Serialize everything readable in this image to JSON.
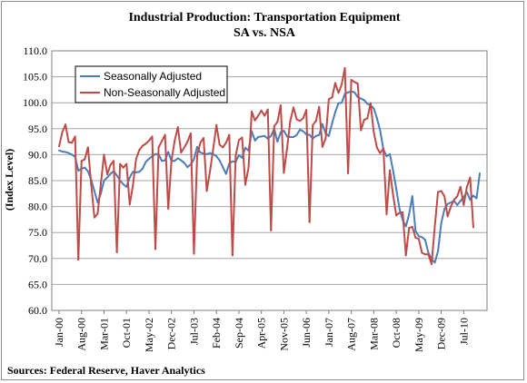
{
  "chart_data": {
    "type": "line",
    "title": "Industrial Production:  Transportation  Equipment",
    "subtitle": "SA vs. NSA",
    "ylabel": "(Index Level)",
    "xlabel": "",
    "ylim": [
      60.0,
      110.0
    ],
    "yticks": [
      "60.0",
      "65.0",
      "70.0",
      "75.0",
      "80.0",
      "85.0",
      "90.0",
      "95.0",
      "100.0",
      "105.0",
      "110.0"
    ],
    "x_tick_labels": [
      "Jan-00",
      "Aug-00",
      "Mar-01",
      "Oct-01",
      "May-02",
      "Dec-02",
      "Jul-03",
      "Feb-04",
      "Sep-04",
      "Apr-05",
      "Nov-05",
      "Jun-06",
      "Jan-07",
      "Aug-07",
      "Mar-08",
      "Oct-08",
      "May-09",
      "Dec-09",
      "Jul-10"
    ],
    "grid": "horizontal",
    "legend_position": "top-left",
    "source": "Sources:  Federal Reserve, Haver Analytics",
    "x_start": "Jan-00",
    "frequency": "monthly",
    "series": [
      {
        "name": "Seasonally Adjusted",
        "color": "#4a7ebb",
        "values": [
          90.8,
          90.6,
          90.5,
          90.3,
          90.0,
          89.6,
          86.9,
          87.3,
          87.5,
          86.8,
          85.2,
          83.0,
          80.8,
          82.5,
          85.0,
          85.6,
          86.3,
          86.8,
          86.0,
          85.0,
          84.3,
          83.8,
          85.6,
          86.7,
          86.6,
          86.7,
          87.3,
          88.6,
          89.2,
          89.7,
          90.1,
          90.1,
          88.8,
          88.9,
          90.5,
          88.8,
          88.8,
          89.3,
          88.9,
          88.4,
          87.6,
          88.1,
          89.1,
          91.5,
          90.4,
          90.2,
          90.1,
          90.3,
          90.1,
          89.7,
          88.9,
          87.6,
          86.3,
          88.3,
          88.7,
          88.6,
          89.9,
          89.4,
          91.3,
          90.8,
          94.5,
          92.7,
          93.4,
          93.5,
          93.6,
          93.1,
          93.6,
          95.0,
          92.5,
          94.3,
          94.6,
          93.5,
          93.4,
          93.4,
          93.8,
          94.8,
          94.5,
          93.9,
          93.8,
          93.1,
          93.6,
          93.8,
          95.9,
          94.1,
          93.6,
          96.0,
          98.2,
          99.9,
          100.0,
          101.7,
          102.0,
          102.2,
          102.0,
          101.1,
          100.8,
          100.5,
          99.8,
          99.5,
          98.9,
          97.0,
          94.6,
          91.0,
          89.7,
          90.1,
          87.0,
          83.4,
          79.6,
          77.4,
          76.2,
          78.5,
          82.0,
          75.3,
          74.3,
          74.1,
          73.6,
          71.1,
          69.9,
          69.2,
          71.4,
          76.8,
          79.5,
          80.5,
          80.8,
          81.1,
          80.3,
          81.1,
          81.8,
          82.8,
          81.3,
          82.1,
          81.6,
          86.4
        ]
      },
      {
        "name": "Non-Seasonally Adjusted",
        "color": "#be4b48",
        "values": [
          91.6,
          94.3,
          95.8,
          92.4,
          92.3,
          93.5,
          69.8,
          88.8,
          89.1,
          91.4,
          84.3,
          77.9,
          78.6,
          84.3,
          90.0,
          86.2,
          88.0,
          88.8,
          71.2,
          88.2,
          87.5,
          88.2,
          80.4,
          84.1,
          89.2,
          90.9,
          91.7,
          92.1,
          92.7,
          93.5,
          71.8,
          91.4,
          92.6,
          93.8,
          79.6,
          88.8,
          92.7,
          95.3,
          90.4,
          91.4,
          92.5,
          94.1,
          70.9,
          89.9,
          92.3,
          93.2,
          83.0,
          86.8,
          91.1,
          95.7,
          91.9,
          91.4,
          92.3,
          93.8,
          70.6,
          89.8,
          92.8,
          93.3,
          84.2,
          87.5,
          98.3,
          96.6,
          97.5,
          98.5,
          97.5,
          98.7,
          75.4,
          95.5,
          96.3,
          99.5,
          86.5,
          91.2,
          96.5,
          99.1,
          96.8,
          96.5,
          97.0,
          98.6,
          77.0,
          95.7,
          96.5,
          99.2,
          91.5,
          93.1,
          100.7,
          101.0,
          103.8,
          101.9,
          103.5,
          106.7,
          86.4,
          104.4,
          104.0,
          103.7,
          94.7,
          96.7,
          97.0,
          99.9,
          94.3,
          91.3,
          90.3,
          91.2,
          78.5,
          87.0,
          82.3,
          78.3,
          78.8,
          78.9,
          70.6,
          75.9,
          76.1,
          74.0,
          73.8,
          71.1,
          70.8,
          70.8,
          68.9,
          76.2,
          82.8,
          83.0,
          82.0,
          78.1,
          80.0,
          81.3,
          82.0,
          83.8,
          80.3,
          83.8,
          85.6,
          76.0
        ]
      }
    ]
  }
}
